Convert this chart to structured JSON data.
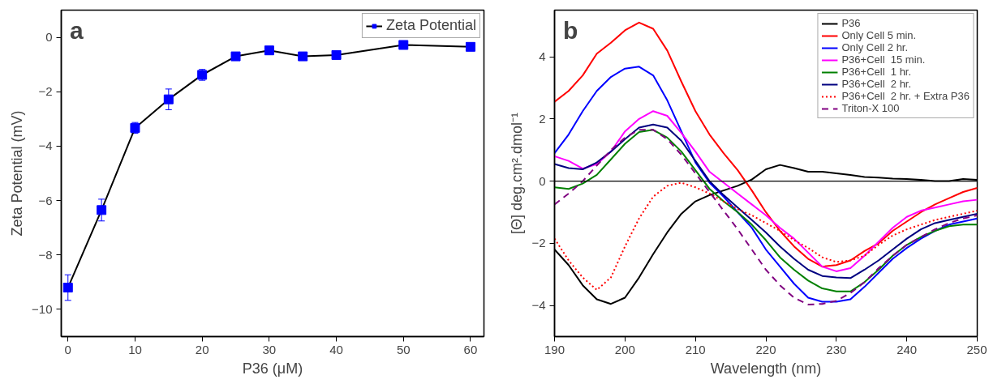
{
  "chart_data": [
    {
      "type": "line",
      "xlabel": "P36 (μM)",
      "ylabel": "Zeta Potential (mV)",
      "annotations": [
        "a"
      ],
      "x": [
        0,
        5,
        10,
        15,
        20,
        25,
        30,
        35,
        40,
        50,
        60
      ],
      "series": [
        {
          "name": "Zeta Potential",
          "color": "#0000ff",
          "values": [
            -9.2,
            -6.35,
            -3.33,
            -2.28,
            -1.38,
            -0.7,
            -0.48,
            -0.7,
            -0.65,
            -0.28,
            -0.35
          ],
          "errors": [
            0.47,
            0.4,
            0.2,
            0.38,
            0.2,
            null,
            null,
            null,
            null,
            null,
            null
          ]
        }
      ],
      "marker": "square",
      "line_style": "solid",
      "legend": "top right",
      "grid": false,
      "xlim": [
        -1,
        62
      ],
      "xticks": [
        0,
        10,
        20,
        30,
        40,
        50,
        60
      ],
      "ylim": [
        -11,
        1
      ],
      "yticks": [
        -10,
        -8,
        -6,
        -4,
        -2,
        0
      ]
    },
    {
      "type": "line",
      "xlabel": "Wavelength (nm)",
      "ylabel": "[Θ] deg.cm².dmol⁻¹",
      "annotations": [
        "b"
      ],
      "x": [
        190,
        192,
        194,
        196,
        198,
        200,
        202,
        204,
        206,
        208,
        210,
        212,
        214,
        216,
        218,
        220,
        222,
        224,
        226,
        228,
        230,
        232,
        234,
        236,
        238,
        240,
        242,
        244,
        246,
        248,
        250
      ],
      "series": [
        {
          "name": "P36",
          "color": "#000000",
          "values": [
            -2.2,
            -2.7,
            -3.35,
            -3.8,
            -3.95,
            -3.75,
            -3.1,
            -2.35,
            -1.65,
            -1.05,
            -0.65,
            -0.45,
            -0.3,
            -0.15,
            0.05,
            0.38,
            0.52,
            0.42,
            0.3,
            0.3,
            0.25,
            0.2,
            0.13,
            0.11,
            0.08,
            0.07,
            0.04,
            0.0,
            0.0,
            0.07,
            0.04
          ]
        },
        {
          "name": "Only Cell 5 min.",
          "color": "#ff0000",
          "values": [
            2.55,
            2.9,
            3.4,
            4.1,
            4.45,
            4.85,
            5.1,
            4.9,
            4.2,
            3.2,
            2.25,
            1.5,
            0.9,
            0.35,
            -0.3,
            -1.0,
            -1.6,
            -2.1,
            -2.5,
            -2.75,
            -2.7,
            -2.55,
            -2.25,
            -2.0,
            -1.6,
            -1.3,
            -1.0,
            -0.75,
            -0.55,
            -0.35,
            -0.22
          ]
        },
        {
          "name": "Only Cell 2 hr.",
          "color": "#0000ff",
          "values": [
            0.9,
            1.5,
            2.25,
            2.9,
            3.35,
            3.62,
            3.68,
            3.4,
            2.6,
            1.6,
            0.6,
            -0.05,
            -0.5,
            -1.0,
            -1.5,
            -2.2,
            -2.75,
            -3.3,
            -3.75,
            -3.88,
            -3.88,
            -3.8,
            -3.4,
            -2.95,
            -2.5,
            -2.15,
            -1.85,
            -1.6,
            -1.4,
            -1.3,
            -1.2
          ]
        },
        {
          "name": "P36+Cell  15 min.",
          "color": "#ff00ff",
          "values": [
            0.8,
            0.65,
            0.4,
            0.55,
            0.95,
            1.6,
            2.0,
            2.25,
            2.1,
            1.55,
            0.95,
            0.3,
            -0.05,
            -0.4,
            -0.75,
            -1.1,
            -1.5,
            -1.85,
            -2.3,
            -2.75,
            -2.9,
            -2.8,
            -2.4,
            -1.95,
            -1.5,
            -1.15,
            -0.95,
            -0.85,
            -0.75,
            -0.65,
            -0.6
          ]
        },
        {
          "name": "P36+Cell  1 hr.",
          "color": "#008000",
          "values": [
            -0.2,
            -0.25,
            -0.08,
            0.2,
            0.7,
            1.2,
            1.58,
            1.65,
            1.4,
            0.95,
            0.35,
            -0.25,
            -0.65,
            -1.0,
            -1.4,
            -1.9,
            -2.45,
            -2.85,
            -3.2,
            -3.45,
            -3.55,
            -3.55,
            -3.25,
            -2.85,
            -2.4,
            -2.05,
            -1.8,
            -1.6,
            -1.45,
            -1.4,
            -1.4
          ]
        },
        {
          "name": "P36+Cell  2 hr.",
          "color": "#000080",
          "values": [
            0.55,
            0.42,
            0.38,
            0.6,
            0.95,
            1.35,
            1.72,
            1.82,
            1.72,
            1.3,
            0.65,
            0.0,
            -0.45,
            -0.85,
            -1.25,
            -1.65,
            -2.1,
            -2.5,
            -2.85,
            -3.05,
            -3.1,
            -3.12,
            -2.85,
            -2.55,
            -2.2,
            -1.85,
            -1.55,
            -1.35,
            -1.25,
            -1.15,
            -1.05
          ]
        },
        {
          "name": "P36+Cell  2 hr. + Extra P36",
          "color": "#ff0000",
          "line_style": "dotted",
          "values": [
            -1.85,
            -2.55,
            -3.1,
            -3.5,
            -3.1,
            -2.1,
            -1.2,
            -0.5,
            -0.15,
            -0.05,
            -0.2,
            -0.4,
            -0.65,
            -0.9,
            -1.1,
            -1.35,
            -1.6,
            -1.9,
            -2.15,
            -2.45,
            -2.6,
            -2.55,
            -2.4,
            -2.05,
            -1.75,
            -1.55,
            -1.4,
            -1.25,
            -1.15,
            -1.05,
            -0.95
          ]
        },
        {
          "name": "Triton-X 100",
          "color": "#800080",
          "line_style": "dashed",
          "values": [
            -0.75,
            -0.4,
            0.0,
            0.5,
            1.0,
            1.4,
            1.65,
            1.65,
            1.35,
            0.85,
            0.25,
            -0.35,
            -0.95,
            -1.55,
            -2.2,
            -2.85,
            -3.35,
            -3.75,
            -3.97,
            -3.95,
            -3.85,
            -3.6,
            -3.25,
            -2.8,
            -2.4,
            -2.05,
            -1.8,
            -1.55,
            -1.35,
            -1.2,
            -1.1
          ]
        }
      ],
      "marker": "none",
      "line_style": "solid",
      "legend": "top right",
      "grid": false,
      "ref_lines": [
        {
          "axis": "y",
          "value": 0,
          "color": "#000000"
        }
      ],
      "xlim": [
        190,
        250
      ],
      "xticks": [
        190,
        200,
        210,
        220,
        230,
        240,
        250
      ],
      "ylim": [
        -5,
        5.5
      ],
      "yticks": [
        -4,
        -2,
        0,
        2,
        4
      ]
    }
  ]
}
